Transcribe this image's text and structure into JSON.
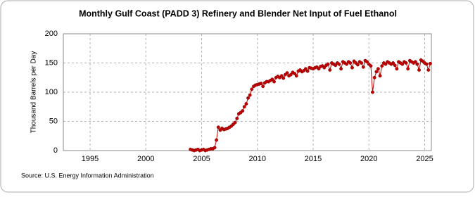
{
  "chart_data": {
    "type": "line",
    "title": "Monthly Gulf Coast (PADD 3) Refinery and Blender Net Input of Fuel Ethanol",
    "y_label": "Thousand Barrels per Day",
    "source": "Source: U.S. Energy Information Administration",
    "x": [
      2004.0,
      2004.17,
      2004.33,
      2004.5,
      2004.67,
      2004.83,
      2005.0,
      2005.17,
      2005.33,
      2005.5,
      2005.67,
      2005.83,
      2006.0,
      2006.17,
      2006.33,
      2006.5,
      2006.67,
      2006.83,
      2007.0,
      2007.17,
      2007.33,
      2007.5,
      2007.67,
      2007.83,
      2008.0,
      2008.17,
      2008.33,
      2008.5,
      2008.67,
      2008.83,
      2009.0,
      2009.17,
      2009.33,
      2009.5,
      2009.67,
      2009.83,
      2010.0,
      2010.17,
      2010.33,
      2010.5,
      2010.67,
      2010.83,
      2011.0,
      2011.17,
      2011.33,
      2011.5,
      2011.67,
      2011.83,
      2012.0,
      2012.17,
      2012.33,
      2012.5,
      2012.67,
      2012.83,
      2013.0,
      2013.17,
      2013.33,
      2013.5,
      2013.67,
      2013.83,
      2014.0,
      2014.17,
      2014.33,
      2014.5,
      2014.67,
      2014.83,
      2015.0,
      2015.17,
      2015.33,
      2015.5,
      2015.67,
      2015.83,
      2016.0,
      2016.17,
      2016.33,
      2016.5,
      2016.67,
      2016.83,
      2017.0,
      2017.17,
      2017.33,
      2017.5,
      2017.67,
      2017.83,
      2018.0,
      2018.17,
      2018.33,
      2018.5,
      2018.67,
      2018.83,
      2019.0,
      2019.17,
      2019.33,
      2019.5,
      2019.67,
      2019.83,
      2020.0,
      2020.17,
      2020.33,
      2020.5,
      2020.67,
      2020.83,
      2021.0,
      2021.17,
      2021.33,
      2021.5,
      2021.67,
      2021.83,
      2022.0,
      2022.17,
      2022.33,
      2022.5,
      2022.67,
      2022.83,
      2023.0,
      2023.17,
      2023.33,
      2023.5,
      2023.67,
      2023.83,
      2024.0,
      2024.17,
      2024.33,
      2024.5,
      2024.67,
      2024.83,
      2025.0,
      2025.17,
      2025.33,
      2025.5
    ],
    "series": [
      {
        "name": "Gulf Coast",
        "color": "#c00000",
        "values": [
          2,
          1,
          0,
          1,
          2,
          0,
          1,
          2,
          0,
          1,
          2,
          3,
          3,
          5,
          18,
          40,
          35,
          38,
          36,
          37,
          38,
          40,
          42,
          45,
          48,
          55,
          63,
          65,
          68,
          75,
          80,
          90,
          95,
          105,
          110,
          112,
          113,
          114,
          115,
          110,
          116,
          118,
          118,
          120,
          122,
          118,
          125,
          127,
          125,
          128,
          124,
          130,
          133,
          128,
          130,
          134,
          132,
          128,
          136,
          138,
          135,
          137,
          140,
          136,
          142,
          141,
          140,
          142,
          143,
          140,
          144,
          145,
          142,
          146,
          148,
          138,
          150,
          148,
          146,
          150,
          148,
          140,
          152,
          150,
          148,
          152,
          150,
          142,
          153,
          150,
          147,
          152,
          150,
          143,
          154,
          152,
          148,
          145,
          100,
          125,
          135,
          140,
          128,
          145,
          150,
          148,
          152,
          150,
          148,
          150,
          146,
          140,
          152,
          150,
          148,
          152,
          150,
          140,
          154,
          152,
          150,
          152,
          148,
          138,
          155,
          153,
          150,
          148,
          138,
          149
        ]
      }
    ],
    "xlim": [
      1992.6,
      2025.6
    ],
    "xticks": [
      1995,
      2000,
      2005,
      2010,
      2015,
      2020,
      2025
    ],
    "ylim": [
      0,
      200
    ],
    "yticks": [
      0,
      50,
      100,
      150,
      200
    ],
    "grid": true
  }
}
